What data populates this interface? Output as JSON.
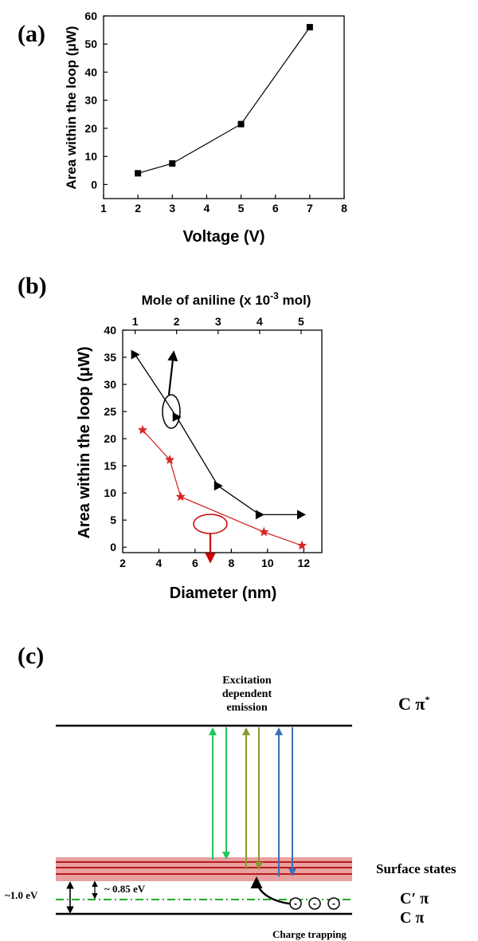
{
  "chart_data": [
    {
      "panel": "(a)",
      "type": "line",
      "xlabel": "Voltage (V)",
      "ylabel": "Area within the loop (μW)",
      "xlim": [
        1,
        8
      ],
      "ylim": [
        -5,
        60
      ],
      "xticks": [
        "1",
        "2",
        "3",
        "4",
        "5",
        "6",
        "7",
        "8"
      ],
      "yticks": [
        "0",
        "10",
        "20",
        "30",
        "40",
        "50",
        "60"
      ],
      "series": [
        {
          "marker": "square",
          "color": "#000000",
          "x": [
            2,
            3,
            5,
            7
          ],
          "y": [
            4.0,
            7.5,
            21.5,
            56.0
          ]
        }
      ]
    },
    {
      "panel": "(b)",
      "type": "line",
      "xlabel": "Diameter (nm)",
      "x2label": "Mole of aniline (x 10",
      "x2label_sup": "-3",
      "x2label_end": " mol)",
      "ylabel": "Area within the loop (μW)",
      "xlim": [
        2,
        13
      ],
      "x2lim": [
        0.7,
        5.5
      ],
      "ylim": [
        -1,
        40
      ],
      "xticks": [
        "2",
        "4",
        "6",
        "8",
        "10",
        "12"
      ],
      "x2ticks": [
        "1",
        "2",
        "3",
        "4",
        "5"
      ],
      "yticks": [
        "0",
        "5",
        "10",
        "15",
        "20",
        "25",
        "30",
        "35",
        "40"
      ],
      "series": [
        {
          "axis": "top",
          "marker": "triangle-right",
          "color": "#000000",
          "x": [
            1,
            2,
            3,
            4,
            5
          ],
          "y": [
            35.5,
            24.0,
            11.3,
            6.0,
            6.0
          ]
        },
        {
          "axis": "bottom",
          "marker": "star",
          "color": "#d62728",
          "x": [
            3.1,
            4.6,
            5.2,
            9.8,
            11.9
          ],
          "y": [
            21.6,
            16.1,
            9.3,
            2.8,
            0.3
          ]
        }
      ]
    },
    {
      "panel": "(c)",
      "type": "diagram",
      "labels": {
        "excitation": [
          "Excitation",
          "dependent",
          "emission"
        ],
        "c_pi_star": "C π",
        "c_pi_star_sup": "*",
        "surface_states": "Surface states",
        "c_prime_pi": "C′ π",
        "c_pi": "C π",
        "gap_outer": "~1.0 eV",
        "gap_inner": "~ 0.85 eV",
        "charge_trapping": "Charge trapping",
        "charge_sign": "-"
      },
      "colors": {
        "green": "#22c55e",
        "olive": "#8a9a2e",
        "blue": "#3b6fb5",
        "band": "#e8a0a0",
        "band_line": "#b91c1c",
        "trap_line": "#22aa22"
      }
    }
  ]
}
